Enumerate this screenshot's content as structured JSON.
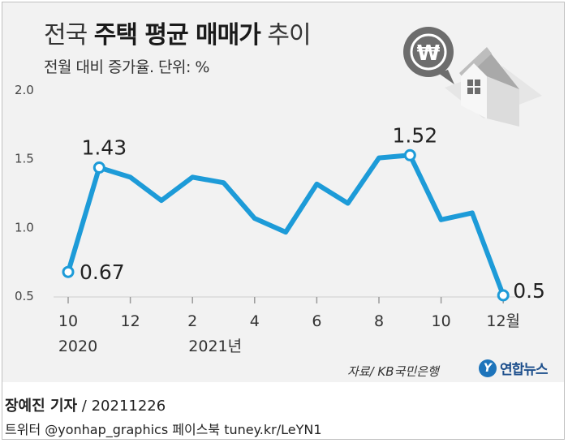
{
  "header": {
    "title_normal_1": "전국 ",
    "title_bold": "주택 평균 매매가",
    "title_normal_2": " 추이",
    "subtitle": "전월 대비 증가율. 단위: %"
  },
  "illustration": {
    "won_symbol": "₩",
    "icons": [
      "won-speech-bubble-icon",
      "house-icon"
    ]
  },
  "colors": {
    "line": "#1d9bd8",
    "panel": "#f2f2f2",
    "text": "#333333"
  },
  "chart_data": {
    "type": "line",
    "x": [
      "2020-10",
      "2020-11",
      "2020-12",
      "2021-01",
      "2021-02",
      "2021-03",
      "2021-04",
      "2021-05",
      "2021-06",
      "2021-07",
      "2021-08",
      "2021-09",
      "2021-10",
      "2021-11",
      "2021-12"
    ],
    "values": [
      0.67,
      1.43,
      1.36,
      1.19,
      1.36,
      1.32,
      1.06,
      0.96,
      1.31,
      1.17,
      1.5,
      1.52,
      1.05,
      1.1,
      0.5
    ],
    "ylim": [
      0.5,
      2.0
    ],
    "y_ticks": [
      "2.0",
      "1.5",
      "1.0",
      "0.5"
    ],
    "x_ticks": [
      {
        "index": 0,
        "label": "10",
        "sub": "2020"
      },
      {
        "index": 2,
        "label": "12",
        "sub": ""
      },
      {
        "index": 4,
        "label": "2",
        "sub": "2021년"
      },
      {
        "index": 6,
        "label": "4",
        "sub": ""
      },
      {
        "index": 8,
        "label": "6",
        "sub": ""
      },
      {
        "index": 10,
        "label": "8",
        "sub": ""
      },
      {
        "index": 12,
        "label": "10",
        "sub": ""
      },
      {
        "index": 14,
        "label": "12월",
        "sub": ""
      }
    ],
    "data_labels": [
      {
        "index": 0,
        "text": "0.67"
      },
      {
        "index": 1,
        "text": "1.43"
      },
      {
        "index": 11,
        "text": "1.52"
      },
      {
        "index": 14,
        "text": "0.5"
      }
    ],
    "grid": false
  },
  "footer": {
    "source": "자료/ KB국민은행",
    "logo_text": "연합뉴스",
    "reporter": "장예진 기자",
    "date": " / 20211226",
    "social": "트위터 @yonhap_graphics  페이스북 tuney.kr/LeYN1"
  }
}
